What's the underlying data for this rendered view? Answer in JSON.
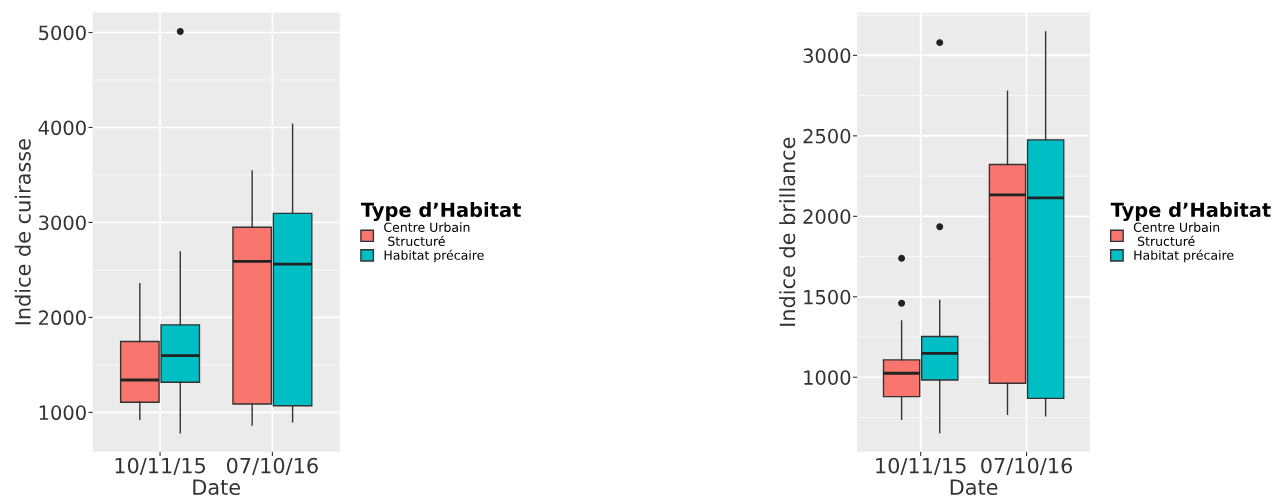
{
  "chart_data": [
    {
      "type": "box",
      "xlabel": "Date",
      "ylabel": "Indice de cuirasse",
      "legend_title": "Type d’Habitat",
      "legend": "right",
      "grid": true,
      "categories": [
        "10/11/15",
        "07/10/16"
      ],
      "ylim": [
        585,
        5210
      ],
      "yticks": [
        1000,
        2000,
        3000,
        4000,
        5000
      ],
      "series": [
        {
          "name": "Centre Urbain\n Structuré",
          "color": "#f8766d",
          "boxes": [
            {
              "low": 926,
              "q1": 1106,
              "median": 1341,
              "q3": 1746,
              "high": 2354
            },
            {
              "low": 866,
              "q1": 1089,
              "median": 2590,
              "q3": 2950,
              "high": 3543
            }
          ]
        },
        {
          "name": "Habitat précaire",
          "color": "#00bfc4",
          "boxes": [
            {
              "low": 785,
              "q1": 1317,
              "median": 1598,
              "q3": 1922,
              "high": 2689,
              "outliers": [
                5010
              ]
            },
            {
              "low": 900,
              "q1": 1070,
              "median": 2560,
              "q3": 3095,
              "high": 4035
            }
          ]
        }
      ]
    },
    {
      "type": "box",
      "xlabel": "Date",
      "ylabel": "Indice de brillance",
      "legend_title": "Type d’Habitat",
      "legend": "right",
      "grid": true,
      "categories": [
        "10/11/15",
        "07/10/16"
      ],
      "ylim": [
        537,
        3266
      ],
      "yticks": [
        1000,
        1500,
        2000,
        2500,
        3000
      ],
      "series": [
        {
          "name": "Centre Urbain\n Structuré",
          "color": "#f8766d",
          "boxes": [
            {
              "low": 739,
              "q1": 880,
              "median": 1025,
              "q3": 1108,
              "high": 1350,
              "outliers": [
                1460,
                1739
              ]
            },
            {
              "low": 770,
              "q1": 963,
              "median": 2133,
              "q3": 2322,
              "high": 2778
            }
          ]
        },
        {
          "name": "Habitat précaire",
          "color": "#00bfc4",
          "boxes": [
            {
              "low": 656,
              "q1": 983,
              "median": 1149,
              "q3": 1253,
              "high": 1477,
              "outliers": [
                1935,
                3079
              ]
            },
            {
              "low": 761,
              "q1": 869,
              "median": 2114,
              "q3": 2475,
              "high": 3145
            }
          ]
        }
      ]
    }
  ]
}
